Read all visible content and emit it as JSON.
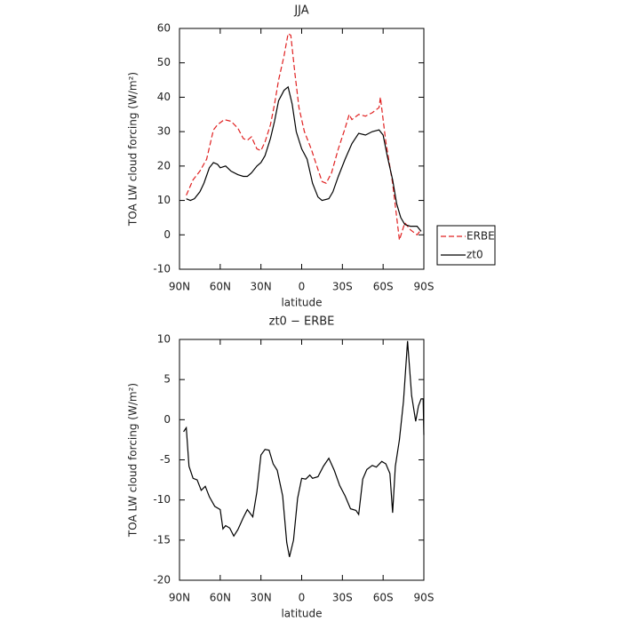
{
  "chart_data": [
    {
      "type": "line",
      "title": "JJA",
      "xlabel": "latitude",
      "ylabel": "TOA LW cloud forcing (W/m²)",
      "xlim": [
        90,
        -90
      ],
      "xticks": [
        {
          "value": 90,
          "label": "90N"
        },
        {
          "value": 60,
          "label": "60N"
        },
        {
          "value": 30,
          "label": "30N"
        },
        0,
        {
          "value": -30,
          "label": "30S"
        },
        {
          "value": -60,
          "label": "60S"
        },
        {
          "value": -90,
          "label": "90S"
        }
      ],
      "ylim": [
        -10,
        60
      ],
      "yticks": [
        -10,
        0,
        10,
        20,
        30,
        40,
        50,
        60
      ],
      "legend": "outside-right",
      "series": [
        {
          "name": "ERBE",
          "color": "#e02020",
          "line_style": "dashed",
          "x": [
            85,
            80,
            75,
            70,
            65,
            62,
            57,
            52,
            47,
            43,
            40,
            37,
            33,
            30,
            27,
            23,
            20,
            17,
            13,
            10,
            8,
            5,
            2,
            -2,
            -7,
            -12,
            -15,
            -18,
            -22,
            -27,
            -32,
            -35,
            -37,
            -42,
            -47,
            -52,
            -57,
            -58,
            -62,
            -67,
            -72,
            -76,
            -80,
            -85,
            -88
          ],
          "values": [
            11.5,
            16,
            18.5,
            22,
            30.5,
            32,
            33.5,
            33,
            31,
            28,
            27.5,
            28.5,
            25,
            24.5,
            27,
            32,
            38,
            45,
            52,
            58.5,
            58,
            47,
            37,
            30,
            25,
            19,
            15.5,
            15,
            18,
            25,
            31,
            35,
            33.5,
            35,
            34.5,
            35.5,
            37,
            40,
            27,
            15,
            -1.5,
            3.5,
            1.5,
            0,
            1.5
          ]
        },
        {
          "name": "zt0",
          "color": "#000000",
          "line_style": "solid",
          "x": [
            85,
            82,
            79,
            75,
            72,
            68,
            65,
            62,
            60,
            56,
            52,
            47,
            43,
            40,
            37,
            33,
            30,
            27,
            23,
            20,
            17,
            13,
            10,
            7,
            4,
            0,
            -4,
            -8,
            -12,
            -15,
            -20,
            -23,
            -27,
            -32,
            -37,
            -42,
            -47,
            -52,
            -57,
            -60,
            -63,
            -67,
            -70,
            -73,
            -76,
            -80,
            -85,
            -88
          ],
          "values": [
            10.5,
            10,
            10.5,
            12.5,
            15,
            19.5,
            21,
            20.5,
            19.5,
            20,
            18.5,
            17.5,
            17,
            17,
            18,
            20,
            21,
            23,
            28,
            33,
            39,
            42,
            43,
            38,
            30,
            25,
            22,
            15,
            11,
            10,
            10.5,
            12.5,
            17,
            22,
            26.5,
            29.5,
            29,
            30,
            30.5,
            29,
            23,
            16,
            9,
            5,
            3,
            2.5,
            2.5,
            1
          ]
        }
      ]
    },
    {
      "type": "line",
      "title": "zt0 − ERBE",
      "xlabel": "latitude",
      "ylabel": "TOA LW cloud forcing (W/m²)",
      "xlim": [
        90,
        -90
      ],
      "xticks": [
        {
          "value": 90,
          "label": "90N"
        },
        {
          "value": 60,
          "label": "60N"
        },
        {
          "value": 30,
          "label": "30N"
        },
        0,
        {
          "value": -30,
          "label": "30S"
        },
        {
          "value": -60,
          "label": "60S"
        },
        {
          "value": -90,
          "label": "90S"
        }
      ],
      "ylim": [
        -20,
        10
      ],
      "yticks": [
        -20,
        -15,
        -10,
        -5,
        0,
        5,
        10
      ],
      "series": [
        {
          "color": "#000000",
          "line_style": "solid",
          "x": [
            87,
            85,
            83,
            80,
            77,
            74,
            71,
            68,
            64,
            60,
            58,
            56,
            53,
            50,
            47,
            43,
            40,
            36,
            33,
            30,
            27,
            24,
            21,
            18,
            14,
            11,
            9,
            6,
            3,
            0,
            -3,
            -6,
            -8,
            -12,
            -16,
            -20,
            -24,
            -28,
            -32,
            -36,
            -40,
            -42,
            -45,
            -48,
            -52,
            -55,
            -59,
            -62,
            -65,
            -67,
            -69,
            -72,
            -75,
            -78,
            -81,
            -84,
            -86,
            -88,
            -89.5,
            -90
          ],
          "values": [
            -1.5,
            -1,
            -5.8,
            -7.3,
            -7.5,
            -8.8,
            -8.3,
            -9.6,
            -10.8,
            -11.2,
            -13.6,
            -13.2,
            -13.5,
            -14.5,
            -13.7,
            -12.2,
            -11.2,
            -12.1,
            -9,
            -4.4,
            -3.7,
            -3.8,
            -5.5,
            -6.3,
            -9.5,
            -15.3,
            -17.1,
            -15,
            -9.8,
            -7.3,
            -7.4,
            -6.9,
            -7.3,
            -7.1,
            -5.8,
            -4.8,
            -6.3,
            -8.2,
            -9.5,
            -11.1,
            -11.3,
            -11.8,
            -7.4,
            -6.2,
            -5.7,
            -5.9,
            -5.2,
            -5.5,
            -6.7,
            -11.6,
            -5.8,
            -2.5,
            2.3,
            9.8,
            3,
            -0.2,
            1.7,
            2.6,
            2.6,
            -1.9
          ]
        }
      ]
    }
  ]
}
